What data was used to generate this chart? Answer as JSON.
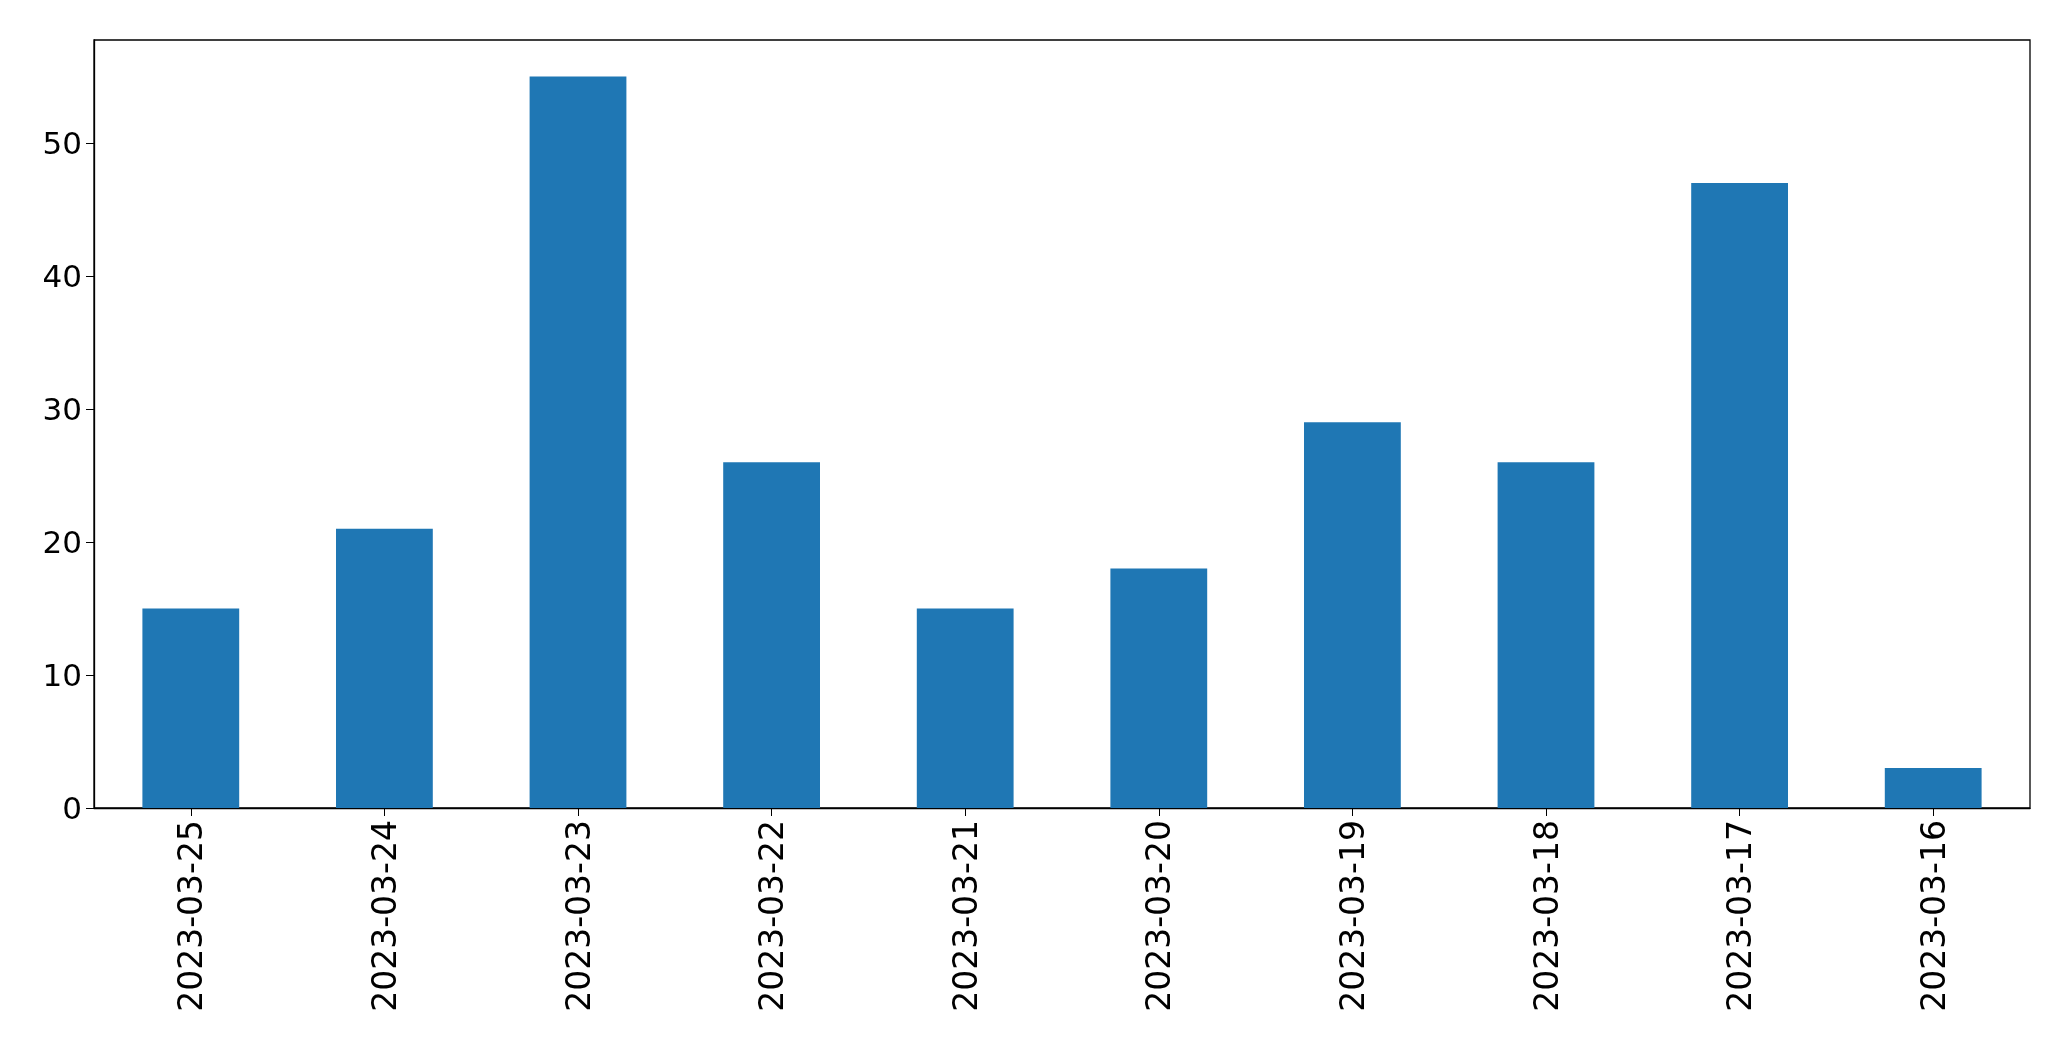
{
  "chart_data": {
    "type": "bar",
    "categories": [
      "2023-03-25",
      "2023-03-24",
      "2023-03-23",
      "2023-03-22",
      "2023-03-21",
      "2023-03-20",
      "2023-03-19",
      "2023-03-18",
      "2023-03-17",
      "2023-03-16"
    ],
    "values": [
      15,
      21,
      55,
      26,
      15,
      18,
      29,
      26,
      47,
      3
    ],
    "color": "#1f77b4",
    "ylim": [
      0,
      57.75
    ],
    "yticks": [
      0,
      10,
      20,
      30,
      40,
      50
    ],
    "grid": false
  }
}
